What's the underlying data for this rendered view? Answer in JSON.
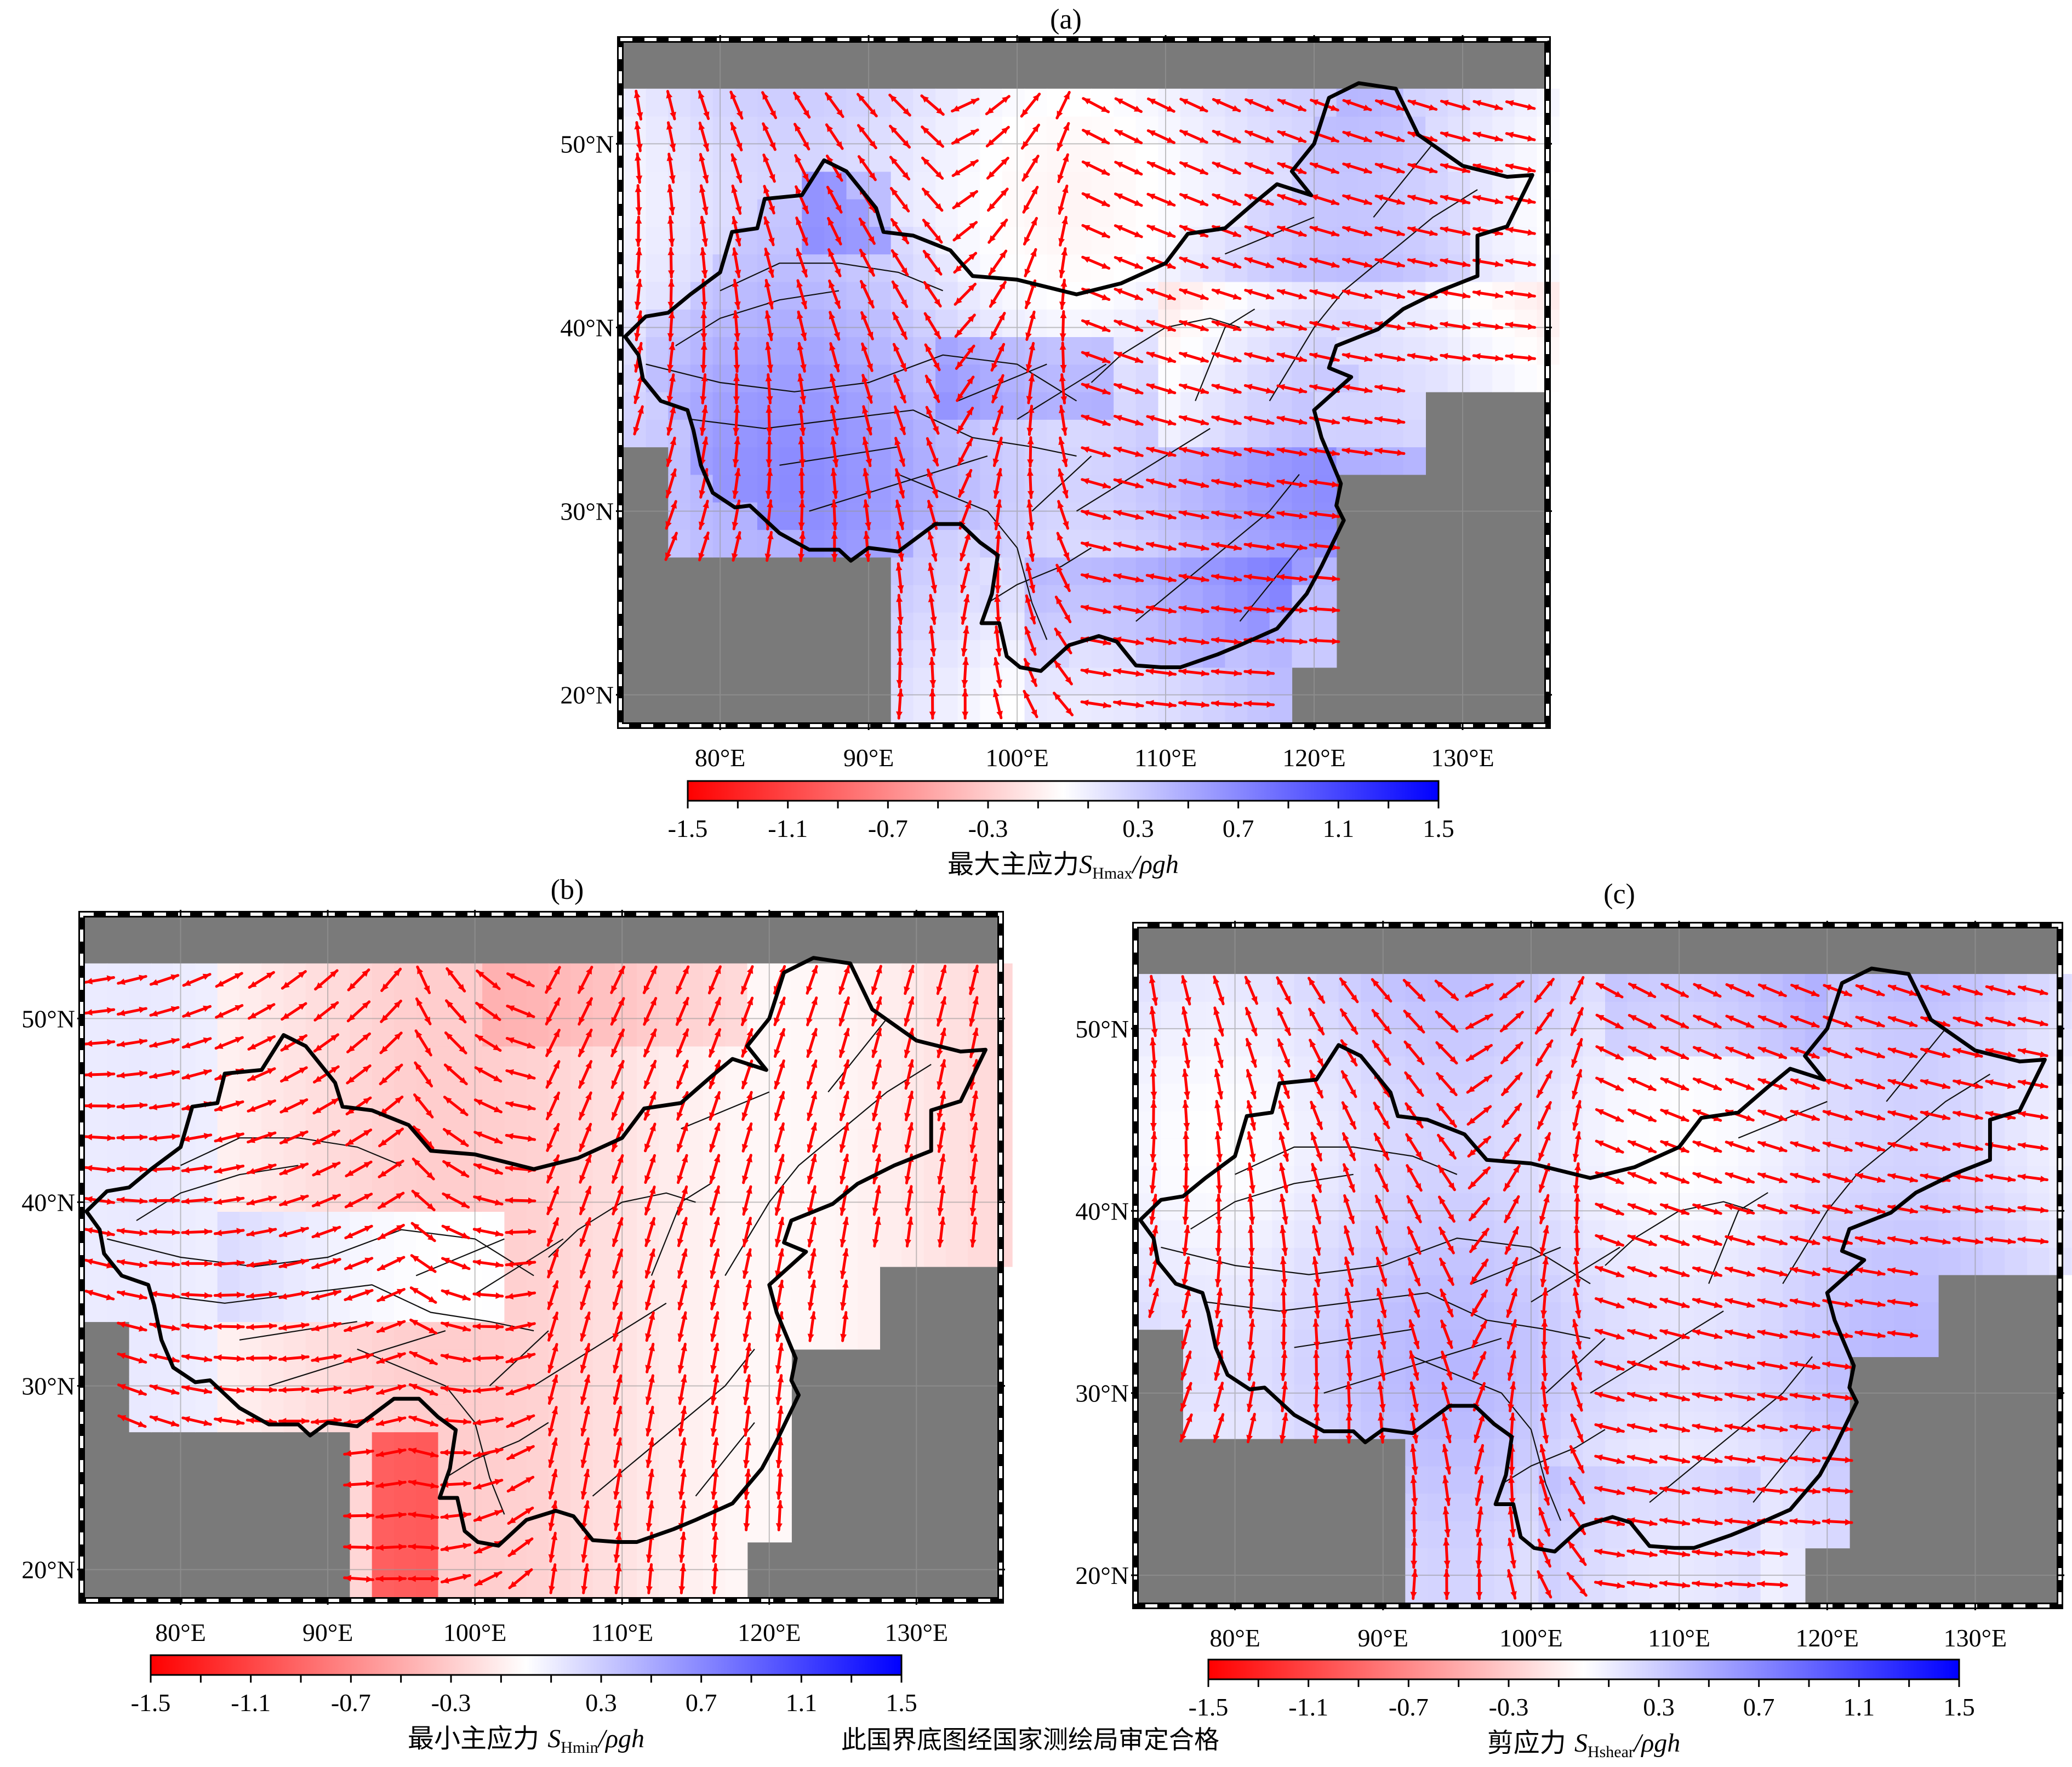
{
  "panels": [
    {
      "id": "a",
      "label": "(a)",
      "colorbar_prefix": "最大主应力",
      "colorbar_sym": "S",
      "colorbar_sub": "Hmax",
      "colorbar_suffix": "/ρgh",
      "mode": "max"
    },
    {
      "id": "b",
      "label": "(b)",
      "colorbar_prefix": "最小主应力 ",
      "colorbar_sym": "S",
      "colorbar_sub": "Hmin",
      "colorbar_suffix": "/ρgh",
      "mode": "min"
    },
    {
      "id": "c",
      "label": "(c)",
      "colorbar_prefix": "剪应力 ",
      "colorbar_sym": "S",
      "colorbar_sub": "Hshear",
      "colorbar_suffix": "/ρgh",
      "mode": "shear"
    }
  ],
  "lat_ticks": [
    "20°N",
    "30°N",
    "40°N",
    "50°N"
  ],
  "lon_ticks": [
    "80°E",
    "90°E",
    "100°E",
    "110°E",
    "120°E",
    "130°E"
  ],
  "colorbar_ticks": [
    "-1.5",
    "-1.1",
    "-0.7",
    "-0.3",
    "0.3",
    "0.7",
    "1.1",
    "1.5"
  ],
  "colorbar_range": [
    -1.5,
    1.5
  ],
  "approval_note": "此国界底图经国家测绘局审定合格",
  "colors": {
    "negative": "#ff0000",
    "positive": "#0000ff",
    "zero": "#ffffff",
    "ocean_mask": "#7a7a7a",
    "vectors": "#ff0000",
    "borders": "#000000"
  }
}
